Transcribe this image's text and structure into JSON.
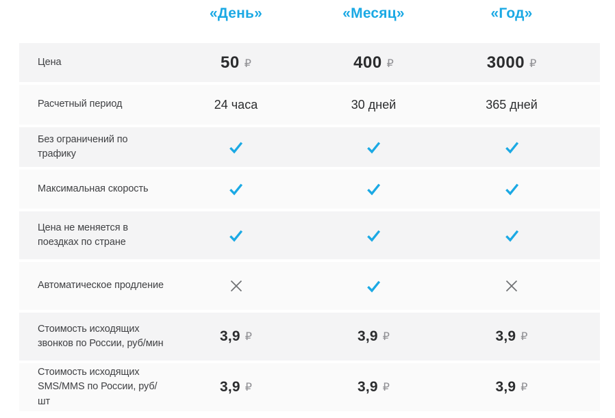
{
  "accent_color": "#1ba9e4",
  "cross_color": "#6f7073",
  "header": {
    "columns": [
      "«День»",
      "«Месяц»",
      "«Год»"
    ]
  },
  "table": {
    "rows": [
      {
        "label": "Цена",
        "type": "price-big",
        "values": [
          {
            "num": "50",
            "cur": "₽"
          },
          {
            "num": "400",
            "cur": "₽"
          },
          {
            "num": "3000",
            "cur": "₽"
          }
        ]
      },
      {
        "label": "Расчетный период",
        "type": "text",
        "values": [
          "24 часа",
          "30 дней",
          "365 дней"
        ]
      },
      {
        "label": "Без ограничений по трафику",
        "type": "icons",
        "values": [
          "check",
          "check",
          "check"
        ]
      },
      {
        "label": "Максимальная скорость",
        "type": "icons",
        "values": [
          "check",
          "check",
          "check"
        ]
      },
      {
        "label": "Цена не меняется в поездках по стране",
        "type": "icons",
        "values": [
          "check",
          "check",
          "check"
        ]
      },
      {
        "label": "Автоматическое продление",
        "type": "icons",
        "values": [
          "cross",
          "check",
          "cross"
        ]
      },
      {
        "label": "Стоимость исходящих звонков по России, руб/мин",
        "type": "price-small",
        "values": [
          {
            "num": "3,9",
            "cur": "₽"
          },
          {
            "num": "3,9",
            "cur": "₽"
          },
          {
            "num": "3,9",
            "cur": "₽"
          }
        ]
      },
      {
        "label": "Стоимость исходящих SMS/MMS по России, руб/шт",
        "type": "price-small",
        "values": [
          {
            "num": "3,9",
            "cur": "₽"
          },
          {
            "num": "3,9",
            "cur": "₽"
          },
          {
            "num": "3,9",
            "cur": "₽"
          }
        ]
      }
    ]
  }
}
